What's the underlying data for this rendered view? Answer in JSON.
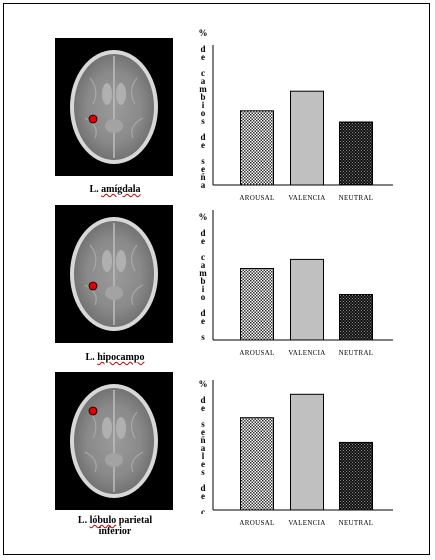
{
  "figure": {
    "panels": [
      {
        "region_label": "L. amígdala",
        "region_lines": [
          {
            "main": "L. ",
            "squig": "amígdala"
          }
        ],
        "ylabel": "% de cambios de señales",
        "dot": "lower"
      },
      {
        "region_label": "L. hipocampo",
        "region_lines": [
          {
            "main": "L. ",
            "squig": "hipocampo"
          }
        ],
        "ylabel": "% de cambio de señales",
        "dot": "lower"
      },
      {
        "region_label": "L. lóbulo parietal inferior",
        "region_lines": [
          {
            "main": "L. ",
            "squig": "lóbulo",
            "rest": " parietal"
          },
          {
            "main": "inferior"
          }
        ],
        "ylabel": "% de señales de cambio",
        "dot": "upper"
      }
    ],
    "colors": {
      "arousal_fill": "checkered-dark",
      "valencia_fill": "#c0c0c0",
      "neutral_fill": "checkered-black",
      "marker": "#e00000"
    }
  },
  "chart_data": [
    {
      "type": "bar",
      "categories": [
        "AROUSAL",
        "VALENCIA",
        "NEUTRAL"
      ],
      "values": [
        0.53,
        0.67,
        0.45
      ],
      "ylim": [
        0,
        1
      ],
      "ylabel": "% de cambios de señales"
    },
    {
      "type": "bar",
      "categories": [
        "AROUSAL",
        "VALENCIA",
        "NEUTRAL"
      ],
      "values": [
        0.55,
        0.62,
        0.35
      ],
      "ylim": [
        0,
        1
      ],
      "ylabel": "% de cambio de señales"
    },
    {
      "type": "bar",
      "categories": [
        "AROUSAL",
        "VALENCIA",
        "NEUTRAL"
      ],
      "values": [
        0.71,
        0.89,
        0.52
      ],
      "ylim": [
        0,
        1
      ],
      "ylabel": "% de señales de cambio"
    }
  ]
}
